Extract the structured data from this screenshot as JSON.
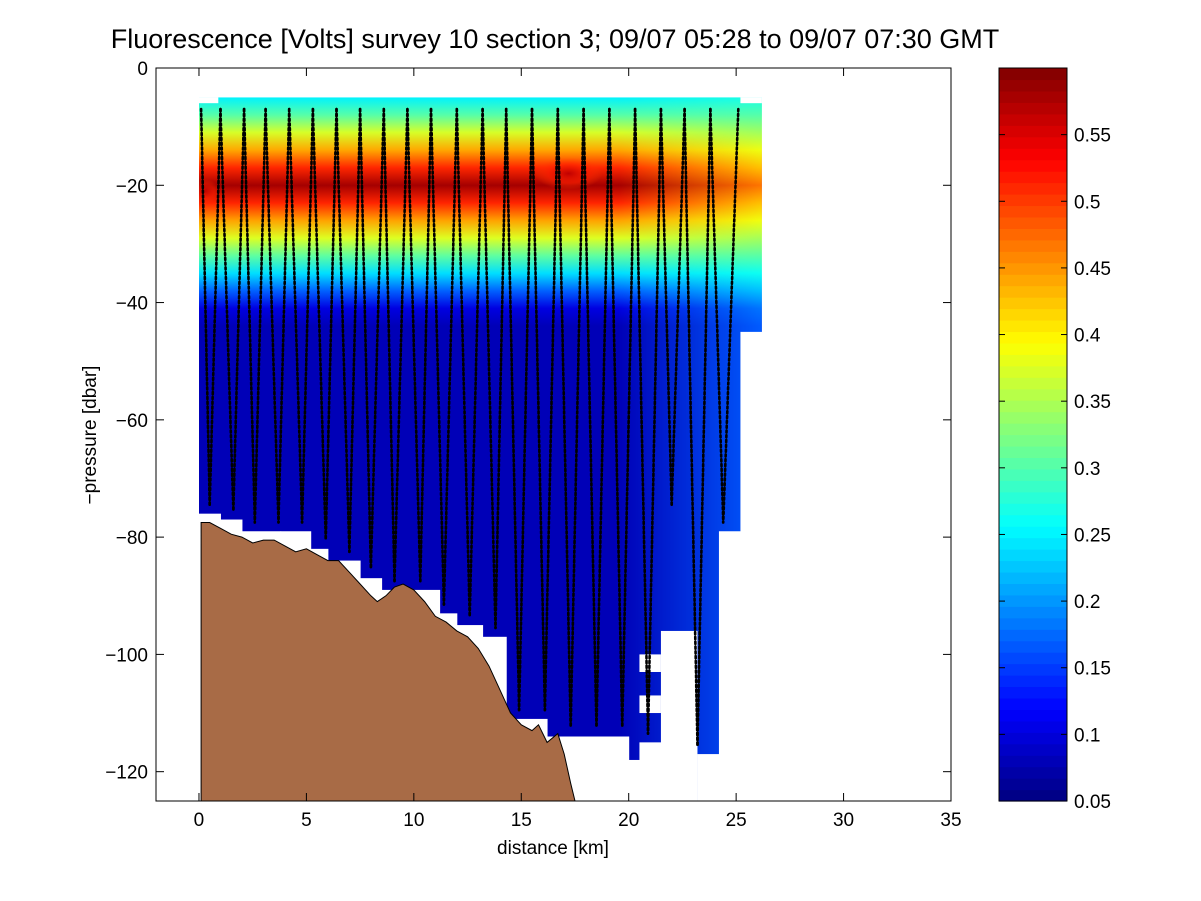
{
  "chart_data": {
    "type": "heatmap",
    "title": "Fluorescence [Volts] survey 10 section 3; 09/07 05:28 to 09/07 07:30 GMT",
    "xlabel": "distance [km]",
    "ylabel": "−pressure [dbar]",
    "xlim": [
      -2,
      35
    ],
    "ylim": [
      -125,
      0
    ],
    "xticks": [
      0,
      5,
      10,
      15,
      20,
      25,
      30,
      35
    ],
    "yticks": [
      0,
      -20,
      -40,
      -60,
      -80,
      -100,
      -120
    ],
    "xtick_labels": [
      "0",
      "5",
      "10",
      "15",
      "20",
      "25",
      "30",
      "35"
    ],
    "ytick_labels": [
      "0",
      "−20",
      "−40",
      "−60",
      "−80",
      "−100",
      "−120"
    ],
    "grid": false,
    "colorbar": {
      "range": [
        0.05,
        0.6
      ],
      "ticks": [
        0.05,
        0.1,
        0.15,
        0.2,
        0.25,
        0.3,
        0.35,
        0.4,
        0.45,
        0.5,
        0.55
      ],
      "tick_labels": [
        "0.05",
        "0.1",
        "0.15",
        "0.2",
        "0.25",
        "0.3",
        "0.35",
        "0.4",
        "0.45",
        "0.5",
        "0.55"
      ],
      "colormap": "jet",
      "placement": "right"
    },
    "bathymetry_color": "#a86b46",
    "profile_marker_color": "#000000",
    "data_region": {
      "surface_depth": -5,
      "deep_mask": [
        {
          "x0": 0,
          "x1": 1.0,
          "bottom": -76
        },
        {
          "x0": 1.0,
          "x1": 2.0,
          "bottom": -77
        },
        {
          "x0": 2.0,
          "x1": 3.8,
          "bottom": -79
        },
        {
          "x0": 3.8,
          "x1": 5.2,
          "bottom": -79
        },
        {
          "x0": 5.2,
          "x1": 6.0,
          "bottom": -82
        },
        {
          "x0": 6.0,
          "x1": 7.5,
          "bottom": -84
        },
        {
          "x0": 7.5,
          "x1": 8.5,
          "bottom": -87
        },
        {
          "x0": 8.5,
          "x1": 11.2,
          "bottom": -89
        },
        {
          "x0": 11.2,
          "x1": 12.0,
          "bottom": -93
        },
        {
          "x0": 12.0,
          "x1": 13.2,
          "bottom": -95
        },
        {
          "x0": 13.2,
          "x1": 14.3,
          "bottom": -97
        },
        {
          "x0": 14.3,
          "x1": 16.2,
          "bottom": -111
        },
        {
          "x0": 16.2,
          "x1": 20.0,
          "bottom": -114
        },
        {
          "x0": 20.0,
          "x1": 20.5,
          "bottom": -118
        },
        {
          "x0": 20.5,
          "x1": 21.5,
          "bottom": -115
        },
        {
          "x0": 23.2,
          "x1": 24.2,
          "bottom": -117
        },
        {
          "x0": 24.2,
          "x1": 25.2,
          "bottom": -79
        },
        {
          "x0": 25.2,
          "x1": 26.2,
          "bottom": -45
        }
      ],
      "holes": [
        {
          "x0": 21.5,
          "x1": 23.2,
          "top": -96,
          "bottom": -125
        },
        {
          "x0": 20.5,
          "x1": 21.5,
          "top": -100,
          "bottom": -103
        },
        {
          "x0": 20.5,
          "x1": 21.5,
          "top": -107,
          "bottom": -110
        }
      ]
    },
    "fluorescence_field": {
      "chlorophyll_max_depth": -20,
      "chlorophyll_max_value": 0.58,
      "surface_value": 0.25,
      "deep_value": 0.08
    },
    "profiles_x_km": [
      0.1,
      0.5,
      1.0,
      1.6,
      2.1,
      2.6,
      3.1,
      3.7,
      4.2,
      4.8,
      5.3,
      5.9,
      6.4,
      7.0,
      7.5,
      8.0,
      8.6,
      9.1,
      9.7,
      10.3,
      10.8,
      11.4,
      12.0,
      12.6,
      13.2,
      13.8,
      14.3,
      14.9,
      15.5,
      16.1,
      16.7,
      17.3,
      17.9,
      18.5,
      19.1,
      19.7,
      20.3,
      20.9,
      21.5,
      22.0,
      22.6,
      23.2,
      23.8,
      24.4,
      25.1
    ],
    "bathymetry": [
      {
        "x": 0.1,
        "y": -77.5
      },
      {
        "x": 0.5,
        "y": -77.5
      },
      {
        "x": 1.0,
        "y": -78.5
      },
      {
        "x": 1.5,
        "y": -79.5
      },
      {
        "x": 2.0,
        "y": -80
      },
      {
        "x": 2.5,
        "y": -81
      },
      {
        "x": 3.0,
        "y": -80.5
      },
      {
        "x": 3.5,
        "y": -80.5
      },
      {
        "x": 4.0,
        "y": -81.5
      },
      {
        "x": 4.5,
        "y": -82.5
      },
      {
        "x": 5.0,
        "y": -82
      },
      {
        "x": 5.5,
        "y": -83
      },
      {
        "x": 6.0,
        "y": -84
      },
      {
        "x": 6.5,
        "y": -84
      },
      {
        "x": 7.0,
        "y": -86
      },
      {
        "x": 7.5,
        "y": -88
      },
      {
        "x": 8.0,
        "y": -90
      },
      {
        "x": 8.3,
        "y": -91
      },
      {
        "x": 8.7,
        "y": -90
      },
      {
        "x": 9.1,
        "y": -88.5
      },
      {
        "x": 9.5,
        "y": -88
      },
      {
        "x": 10.0,
        "y": -89
      },
      {
        "x": 10.5,
        "y": -91
      },
      {
        "x": 11.0,
        "y": -93.5
      },
      {
        "x": 11.5,
        "y": -94.5
      },
      {
        "x": 12.0,
        "y": -96
      },
      {
        "x": 12.5,
        "y": -97
      },
      {
        "x": 13.0,
        "y": -99
      },
      {
        "x": 13.5,
        "y": -102
      },
      {
        "x": 14.0,
        "y": -106
      },
      {
        "x": 14.5,
        "y": -110
      },
      {
        "x": 15.0,
        "y": -112
      },
      {
        "x": 15.5,
        "y": -113
      },
      {
        "x": 15.8,
        "y": -112
      },
      {
        "x": 16.2,
        "y": -115
      },
      {
        "x": 16.7,
        "y": -113.5
      },
      {
        "x": 17.0,
        "y": -117
      },
      {
        "x": 17.3,
        "y": -122
      },
      {
        "x": 17.5,
        "y": -125
      }
    ]
  }
}
